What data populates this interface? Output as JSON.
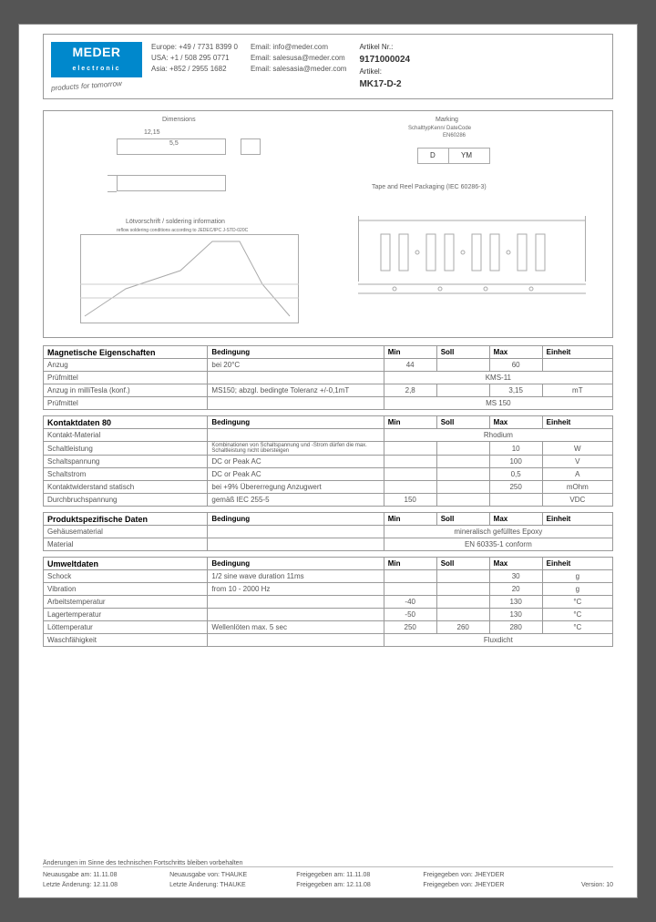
{
  "logo": {
    "line1": "MEDER",
    "line2": "electronic",
    "tagline": "products for tomorrow"
  },
  "contacts": {
    "phones": {
      "eu": "Europe: +49 / 7731 8399 0",
      "usa": "USA:    +1 / 508 295 0771",
      "asia": "Asia:   +852 / 2955 1682"
    },
    "emails": {
      "eu": "Email: info@meder.com",
      "usa": "Email: salesusa@meder.com",
      "asia": "Email: salesasia@meder.com"
    }
  },
  "article": {
    "nr_label": "Artikel Nr.:",
    "nr": "9171000024",
    "name_label": "Artikel:",
    "name": "MK17-D-2"
  },
  "diagram_labels": {
    "dimensions": "Dimensions",
    "marking": "Marking",
    "marking_sub": "SchalttypKenn/ DateCode",
    "marking_sub2": "EN60286",
    "d": "D",
    "ym": "YM",
    "tape": "Tape and Reel Packaging (IEC 60286-3)",
    "soldering": "Lötvorschrift / soldering information",
    "soldering_sub": "reflow soldering conditions according to JEDEC/IPC J-STD-020C",
    "d1": "12,15",
    "d2": "5,5"
  },
  "tables": {
    "headers": [
      "Bedingung",
      "Min",
      "Soll",
      "Max",
      "Einheit"
    ],
    "magnetic": {
      "title": "Magnetische Eigenschaften",
      "rows": [
        {
          "name": "Anzug",
          "cond": "bei 20°C",
          "min": "44",
          "soll": "",
          "max": "60",
          "unit": ""
        },
        {
          "name": "Prüfmittel",
          "cond": "",
          "span": "KMS-11"
        },
        {
          "name": "Anzug in milliTesla (konf.)",
          "cond": "MS150; abzgl. bedingte Toleranz +/-0,1mT",
          "min": "2,8",
          "soll": "",
          "max": "3,15",
          "unit": "mT"
        },
        {
          "name": "Prüfmittel",
          "cond": "",
          "span": "MS 150"
        }
      ]
    },
    "kontakt": {
      "title": "Kontaktdaten  80",
      "rows": [
        {
          "name": "Kontakt-Material",
          "cond": "",
          "span": "Rhodium"
        },
        {
          "name": "Schaltleistung",
          "cond": "Kombinationen von Schaltspannung und -Strom dürfen die max. Schaltleistung nicht übersteigen",
          "min": "",
          "soll": "",
          "max": "10",
          "unit": "W"
        },
        {
          "name": "Schaltspannung",
          "cond": "DC or Peak AC",
          "min": "",
          "soll": "",
          "max": "100",
          "unit": "V"
        },
        {
          "name": "Schaltstrom",
          "cond": "DC or Peak AC",
          "min": "",
          "soll": "",
          "max": "0,5",
          "unit": "A"
        },
        {
          "name": "Kontaktwiderstand statisch",
          "cond": "bei +9% Übererregung Anzugwert",
          "min": "",
          "soll": "",
          "max": "250",
          "unit": "mOhm"
        },
        {
          "name": "Durchbruchspannung",
          "cond": "gemäß IEC 255-5",
          "min": "150",
          "soll": "",
          "max": "",
          "unit": "VDC"
        }
      ]
    },
    "produkt": {
      "title": "Produktspezifische Daten",
      "rows": [
        {
          "name": "Gehäusematerial",
          "cond": "",
          "span": "mineralisch gefülltes Epoxy"
        },
        {
          "name": "Material",
          "cond": "",
          "span": "EN 60335-1 conform"
        }
      ]
    },
    "umwelt": {
      "title": "Umweltdaten",
      "rows": [
        {
          "name": "Schock",
          "cond": "1/2 sine wave duration 11ms",
          "min": "",
          "soll": "",
          "max": "30",
          "unit": "g"
        },
        {
          "name": "Vibration",
          "cond": "from  10 - 2000 Hz",
          "min": "",
          "soll": "",
          "max": "20",
          "unit": "g"
        },
        {
          "name": "Arbeitstemperatur",
          "cond": "",
          "min": "-40",
          "soll": "",
          "max": "130",
          "unit": "°C"
        },
        {
          "name": "Lagertemperatur",
          "cond": "",
          "min": "-50",
          "soll": "",
          "max": "130",
          "unit": "°C"
        },
        {
          "name": "Löttemperatur",
          "cond": "Wellenlöten max. 5 sec",
          "min": "250",
          "soll": "260",
          "max": "280",
          "unit": "°C"
        },
        {
          "name": "Waschfähigkeit",
          "cond": "",
          "span": "Fluxdicht"
        }
      ]
    }
  },
  "footer": {
    "disclaimer": "Änderungen im Sinne des technischen Fortschritts bleiben vorbehalten",
    "row1": {
      "a": "Neuausgabe am:  11.11.08",
      "b": "Neuausgabe von:    THAUKE",
      "c": "Freigegeben am:   11.11.08",
      "d": "Freigegeben von:    JHEYDER"
    },
    "row2": {
      "a": "Letzte Änderung:  12.11.08",
      "b": "Letzte Änderung:     THAUKE",
      "c": "Freigegeben am:   12.11.08",
      "d": "Freigegeben von:    JHEYDER",
      "e": "Version:    10"
    }
  },
  "colwidths": {
    "name": "28%",
    "cond": "30%",
    "val": "9%",
    "unit": "12%"
  }
}
